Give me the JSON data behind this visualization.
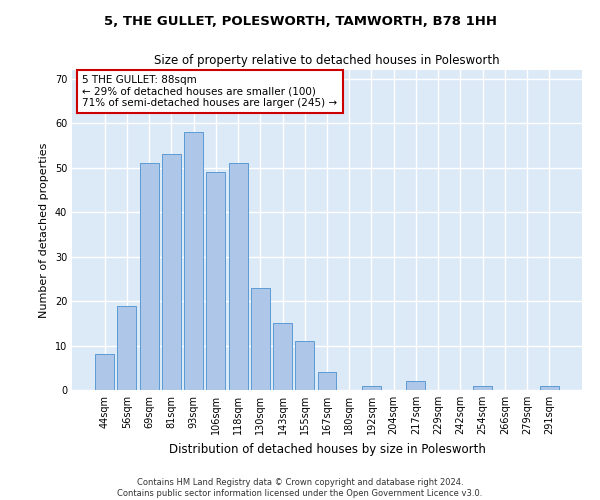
{
  "title": "5, THE GULLET, POLESWORTH, TAMWORTH, B78 1HH",
  "subtitle": "Size of property relative to detached houses in Polesworth",
  "xlabel": "Distribution of detached houses by size in Polesworth",
  "ylabel": "Number of detached properties",
  "categories": [
    "44sqm",
    "56sqm",
    "69sqm",
    "81sqm",
    "93sqm",
    "106sqm",
    "118sqm",
    "130sqm",
    "143sqm",
    "155sqm",
    "167sqm",
    "180sqm",
    "192sqm",
    "204sqm",
    "217sqm",
    "229sqm",
    "242sqm",
    "254sqm",
    "266sqm",
    "279sqm",
    "291sqm"
  ],
  "values": [
    8,
    19,
    51,
    53,
    58,
    49,
    51,
    23,
    15,
    11,
    4,
    0,
    1,
    0,
    2,
    0,
    0,
    1,
    0,
    0,
    1
  ],
  "bar_color": "#aec6e8",
  "bar_edge_color": "#5b9bd5",
  "background_color": "#dce9f7",
  "grid_color": "#ffffff",
  "fig_background": "#ffffff",
  "annotation_text": "5 THE GULLET: 88sqm\n← 29% of detached houses are smaller (100)\n71% of semi-detached houses are larger (245) →",
  "annotation_box_color": "#ffffff",
  "annotation_box_edge": "#cc0000",
  "ylim": [
    0,
    72
  ],
  "yticks": [
    0,
    10,
    20,
    30,
    40,
    50,
    60,
    70
  ],
  "footer_line1": "Contains HM Land Registry data © Crown copyright and database right 2024.",
  "footer_line2": "Contains public sector information licensed under the Open Government Licence v3.0."
}
